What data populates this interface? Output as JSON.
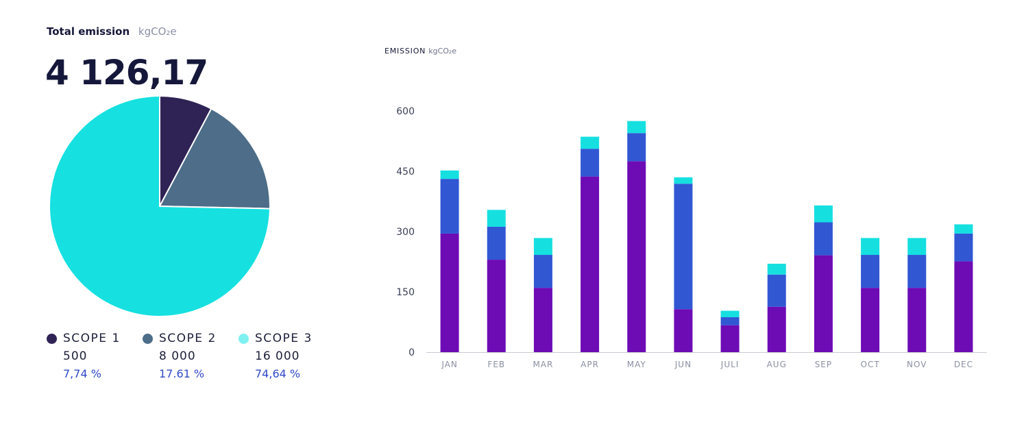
{
  "total": {
    "title": "Total emission",
    "unit": "kgCO₂e",
    "value": "4 126,17"
  },
  "legend": [
    {
      "label": "SCOPE 1",
      "value": "500",
      "percent": "7,74 %",
      "color": "#2f2355"
    },
    {
      "label": "SCOPE 2",
      "value": "8 000",
      "percent": "17.61 %",
      "color": "#4d6d88"
    },
    {
      "label": "SCOPE 3",
      "value": "16 000",
      "percent": "74,64 %",
      "color": "#7ff0f0"
    }
  ],
  "chart_data": [
    {
      "type": "pie",
      "labels": [
        "SCOPE 1",
        "SCOPE 2",
        "SCOPE 3"
      ],
      "values": [
        7.74,
        17.61,
        74.64
      ],
      "colors": [
        "#2f2355",
        "#4d6d88",
        "#16e0e0"
      ]
    },
    {
      "type": "bar",
      "stacked": true,
      "title": "EMISSION",
      "unit": "kgCO₂e",
      "categories": [
        "JAN",
        "FEB",
        "MAR",
        "APR",
        "MAY",
        "JUN",
        "JULI",
        "AUG",
        "SEP",
        "OCT",
        "NOV",
        "DEC"
      ],
      "series": [
        {
          "color": "#6d0bb5",
          "values": [
            295,
            230,
            160,
            437,
            475,
            107,
            67,
            113,
            241,
            160,
            160,
            226
          ]
        },
        {
          "color": "#3157d3",
          "values": [
            136,
            82,
            82,
            69,
            70,
            312,
            20,
            80,
            82,
            82,
            82,
            69
          ]
        },
        {
          "color": "#16dfe0",
          "values": [
            21,
            42,
            42,
            30,
            30,
            16,
            16,
            27,
            42,
            42,
            42,
            23
          ]
        }
      ],
      "yticks": [
        0,
        150,
        300,
        450,
        600
      ],
      "ylim": [
        0,
        600
      ],
      "grid": false
    }
  ]
}
